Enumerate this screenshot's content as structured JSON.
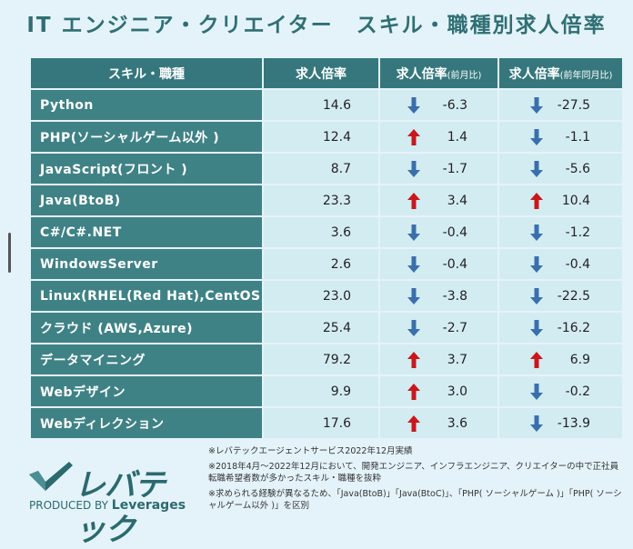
{
  "title": "IT エンジニア・クリエイター　スキル・職種別求人倍率",
  "headers": {
    "skill": "スキル・職種",
    "ratio": "求人倍率",
    "mom_main": "求人倍率",
    "mom_sub": "(前月比)",
    "yoy_main": "求人倍率",
    "yoy_sub": "(前年同月比)"
  },
  "colors": {
    "up": "#c8181c",
    "down": "#3a6fae",
    "header": "#35777c",
    "cell": "#d3ecf1"
  },
  "rows": [
    {
      "skill": "Python",
      "ratio": "14.6",
      "mom": "-6.3",
      "mom_dir": "down",
      "yoy": "-27.5",
      "yoy_dir": "down"
    },
    {
      "skill": "PHP(ソーシャルゲーム以外 )",
      "ratio": "12.4",
      "mom": "1.4",
      "mom_dir": "up",
      "yoy": "-1.1",
      "yoy_dir": "down"
    },
    {
      "skill": "JavaScript(フロント )",
      "ratio": "8.7",
      "mom": "-1.7",
      "mom_dir": "down",
      "yoy": "-5.6",
      "yoy_dir": "down"
    },
    {
      "skill": "Java(BtoB)",
      "ratio": "23.3",
      "mom": "3.4",
      "mom_dir": "up",
      "yoy": "10.4",
      "yoy_dir": "up"
    },
    {
      "skill": "C#/C#.NET",
      "ratio": "3.6",
      "mom": "-0.4",
      "mom_dir": "down",
      "yoy": "-1.2",
      "yoy_dir": "down"
    },
    {
      "skill": "WindowsServer",
      "ratio": "2.6",
      "mom": "-0.4",
      "mom_dir": "down",
      "yoy": "-0.4",
      "yoy_dir": "down"
    },
    {
      "skill": "Linux(RHEL(Red Hat),CentOS)",
      "ratio": "23.0",
      "mom": "-3.8",
      "mom_dir": "down",
      "yoy": "-22.5",
      "yoy_dir": "down"
    },
    {
      "skill": "クラウド (AWS,Azure)",
      "ratio": "25.4",
      "mom": "-2.7",
      "mom_dir": "down",
      "yoy": "-16.2",
      "yoy_dir": "down"
    },
    {
      "skill": "データマイニング",
      "ratio": "79.2",
      "mom": "3.7",
      "mom_dir": "up",
      "yoy": "6.9",
      "yoy_dir": "up"
    },
    {
      "skill": "Webデザイン",
      "ratio": "9.9",
      "mom": "3.0",
      "mom_dir": "up",
      "yoy": "-0.2",
      "yoy_dir": "down"
    },
    {
      "skill": "Webディレクション",
      "ratio": "17.6",
      "mom": "3.6",
      "mom_dir": "up",
      "yoy": "-13.9",
      "yoy_dir": "down"
    }
  ],
  "logo": {
    "text": "レバテック",
    "produced_by": "PRODUCED BY",
    "brand": "Leverages"
  },
  "notes": [
    "※レバテックエージェントサービス2022年12月実績",
    "※2018年4月～2022年12月において、開発エンジニア、インフラエンジニア、クリエイターの中で正社員転職希望者数が多かったスキル・職種を抜粋",
    "※求められる経験が異なるため、「Java(BtoB)」「Java(BtoC)」、「PHP( ソーシャルゲーム )」「PHP( ソーシャルゲーム以外 )」を区別"
  ]
}
